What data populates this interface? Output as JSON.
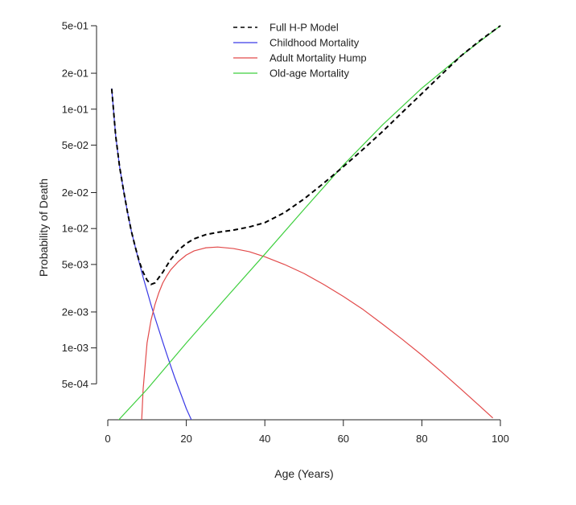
{
  "chart_data": {
    "type": "line",
    "title": "",
    "xlabel": "Age (Years)",
    "ylabel": "Probability of Death",
    "scale": {
      "x": "linear",
      "y": "log10"
    },
    "xlim": [
      0,
      100
    ],
    "ylim": [
      0.00025,
      0.5
    ],
    "x_ticks": [
      0,
      20,
      40,
      60,
      80,
      100
    ],
    "y_ticks": [
      {
        "value": 0.5,
        "label": "5e-01"
      },
      {
        "value": 0.2,
        "label": "2e-01"
      },
      {
        "value": 0.1,
        "label": "1e-01"
      },
      {
        "value": 0.05,
        "label": "5e-02"
      },
      {
        "value": 0.02,
        "label": "2e-02"
      },
      {
        "value": 0.01,
        "label": "1e-02"
      },
      {
        "value": 0.005,
        "label": "5e-03"
      },
      {
        "value": 0.002,
        "label": "2e-03"
      },
      {
        "value": 0.001,
        "label": "1e-03"
      },
      {
        "value": 0.0005,
        "label": "5e-04"
      }
    ],
    "grid": false,
    "legend": {
      "position": "top-center"
    },
    "series": [
      {
        "name": "Full H-P Model",
        "color": "#000000",
        "dash": true,
        "x": [
          1,
          2,
          3,
          4,
          5,
          6,
          7,
          8,
          9,
          10,
          11,
          12,
          14,
          16,
          18,
          20,
          22,
          25,
          28,
          32,
          36,
          40,
          45,
          50,
          55,
          60,
          65,
          70,
          75,
          80,
          85,
          90,
          95,
          100
        ],
        "y": [
          0.148,
          0.06,
          0.033,
          0.021,
          0.0138,
          0.0095,
          0.007,
          0.0053,
          0.0043,
          0.0037,
          0.0034,
          0.0035,
          0.0043,
          0.0055,
          0.0066,
          0.0075,
          0.0082,
          0.0089,
          0.0093,
          0.0097,
          0.0103,
          0.0112,
          0.0136,
          0.0177,
          0.024,
          0.033,
          0.046,
          0.065,
          0.094,
          0.135,
          0.195,
          0.28,
          0.38,
          0.5
        ]
      },
      {
        "name": "Childhood Mortality",
        "color": "#3a3ae6",
        "dash": false,
        "x": [
          1,
          2,
          3,
          4,
          5,
          6,
          7,
          8,
          9,
          10,
          11,
          12,
          13,
          14,
          15,
          16,
          17,
          18,
          19,
          20,
          21,
          22,
          23,
          23.7
        ],
        "y": [
          0.148,
          0.06,
          0.033,
          0.021,
          0.0138,
          0.0095,
          0.007,
          0.0052,
          0.0039,
          0.003,
          0.0023,
          0.0018,
          0.00142,
          0.00112,
          0.00089,
          0.00071,
          0.00057,
          0.000465,
          0.00038,
          0.00031,
          0.000262,
          0.000223,
          0.000188,
          0.00017
        ]
      },
      {
        "name": "Adult Mortality Hump",
        "color": "#e24a4a",
        "dash": false,
        "x": [
          8.4,
          9,
          10,
          11,
          12,
          13,
          14,
          15,
          16,
          18,
          20,
          22,
          25,
          28,
          32,
          36,
          40,
          45,
          50,
          55,
          60,
          65,
          70,
          75,
          80,
          85,
          90,
          95,
          98
        ],
        "y": [
          0.00017,
          0.00045,
          0.0011,
          0.0017,
          0.0023,
          0.0029,
          0.0035,
          0.004,
          0.0045,
          0.0053,
          0.006,
          0.0065,
          0.0069,
          0.007,
          0.0068,
          0.0064,
          0.0058,
          0.005,
          0.0042,
          0.0034,
          0.0027,
          0.0021,
          0.00158,
          0.00118,
          0.00087,
          0.00063,
          0.00045,
          0.00032,
          0.00026
        ]
      },
      {
        "name": "Old-age Mortality",
        "color": "#3ecf3e",
        "dash": false,
        "x": [
          2.8,
          10,
          20,
          30,
          40,
          50,
          60,
          70,
          80,
          90,
          100
        ],
        "y": [
          0.00025,
          0.00045,
          0.0011,
          0.0026,
          0.0061,
          0.0145,
          0.034,
          0.074,
          0.15,
          0.28,
          0.5
        ]
      }
    ]
  }
}
